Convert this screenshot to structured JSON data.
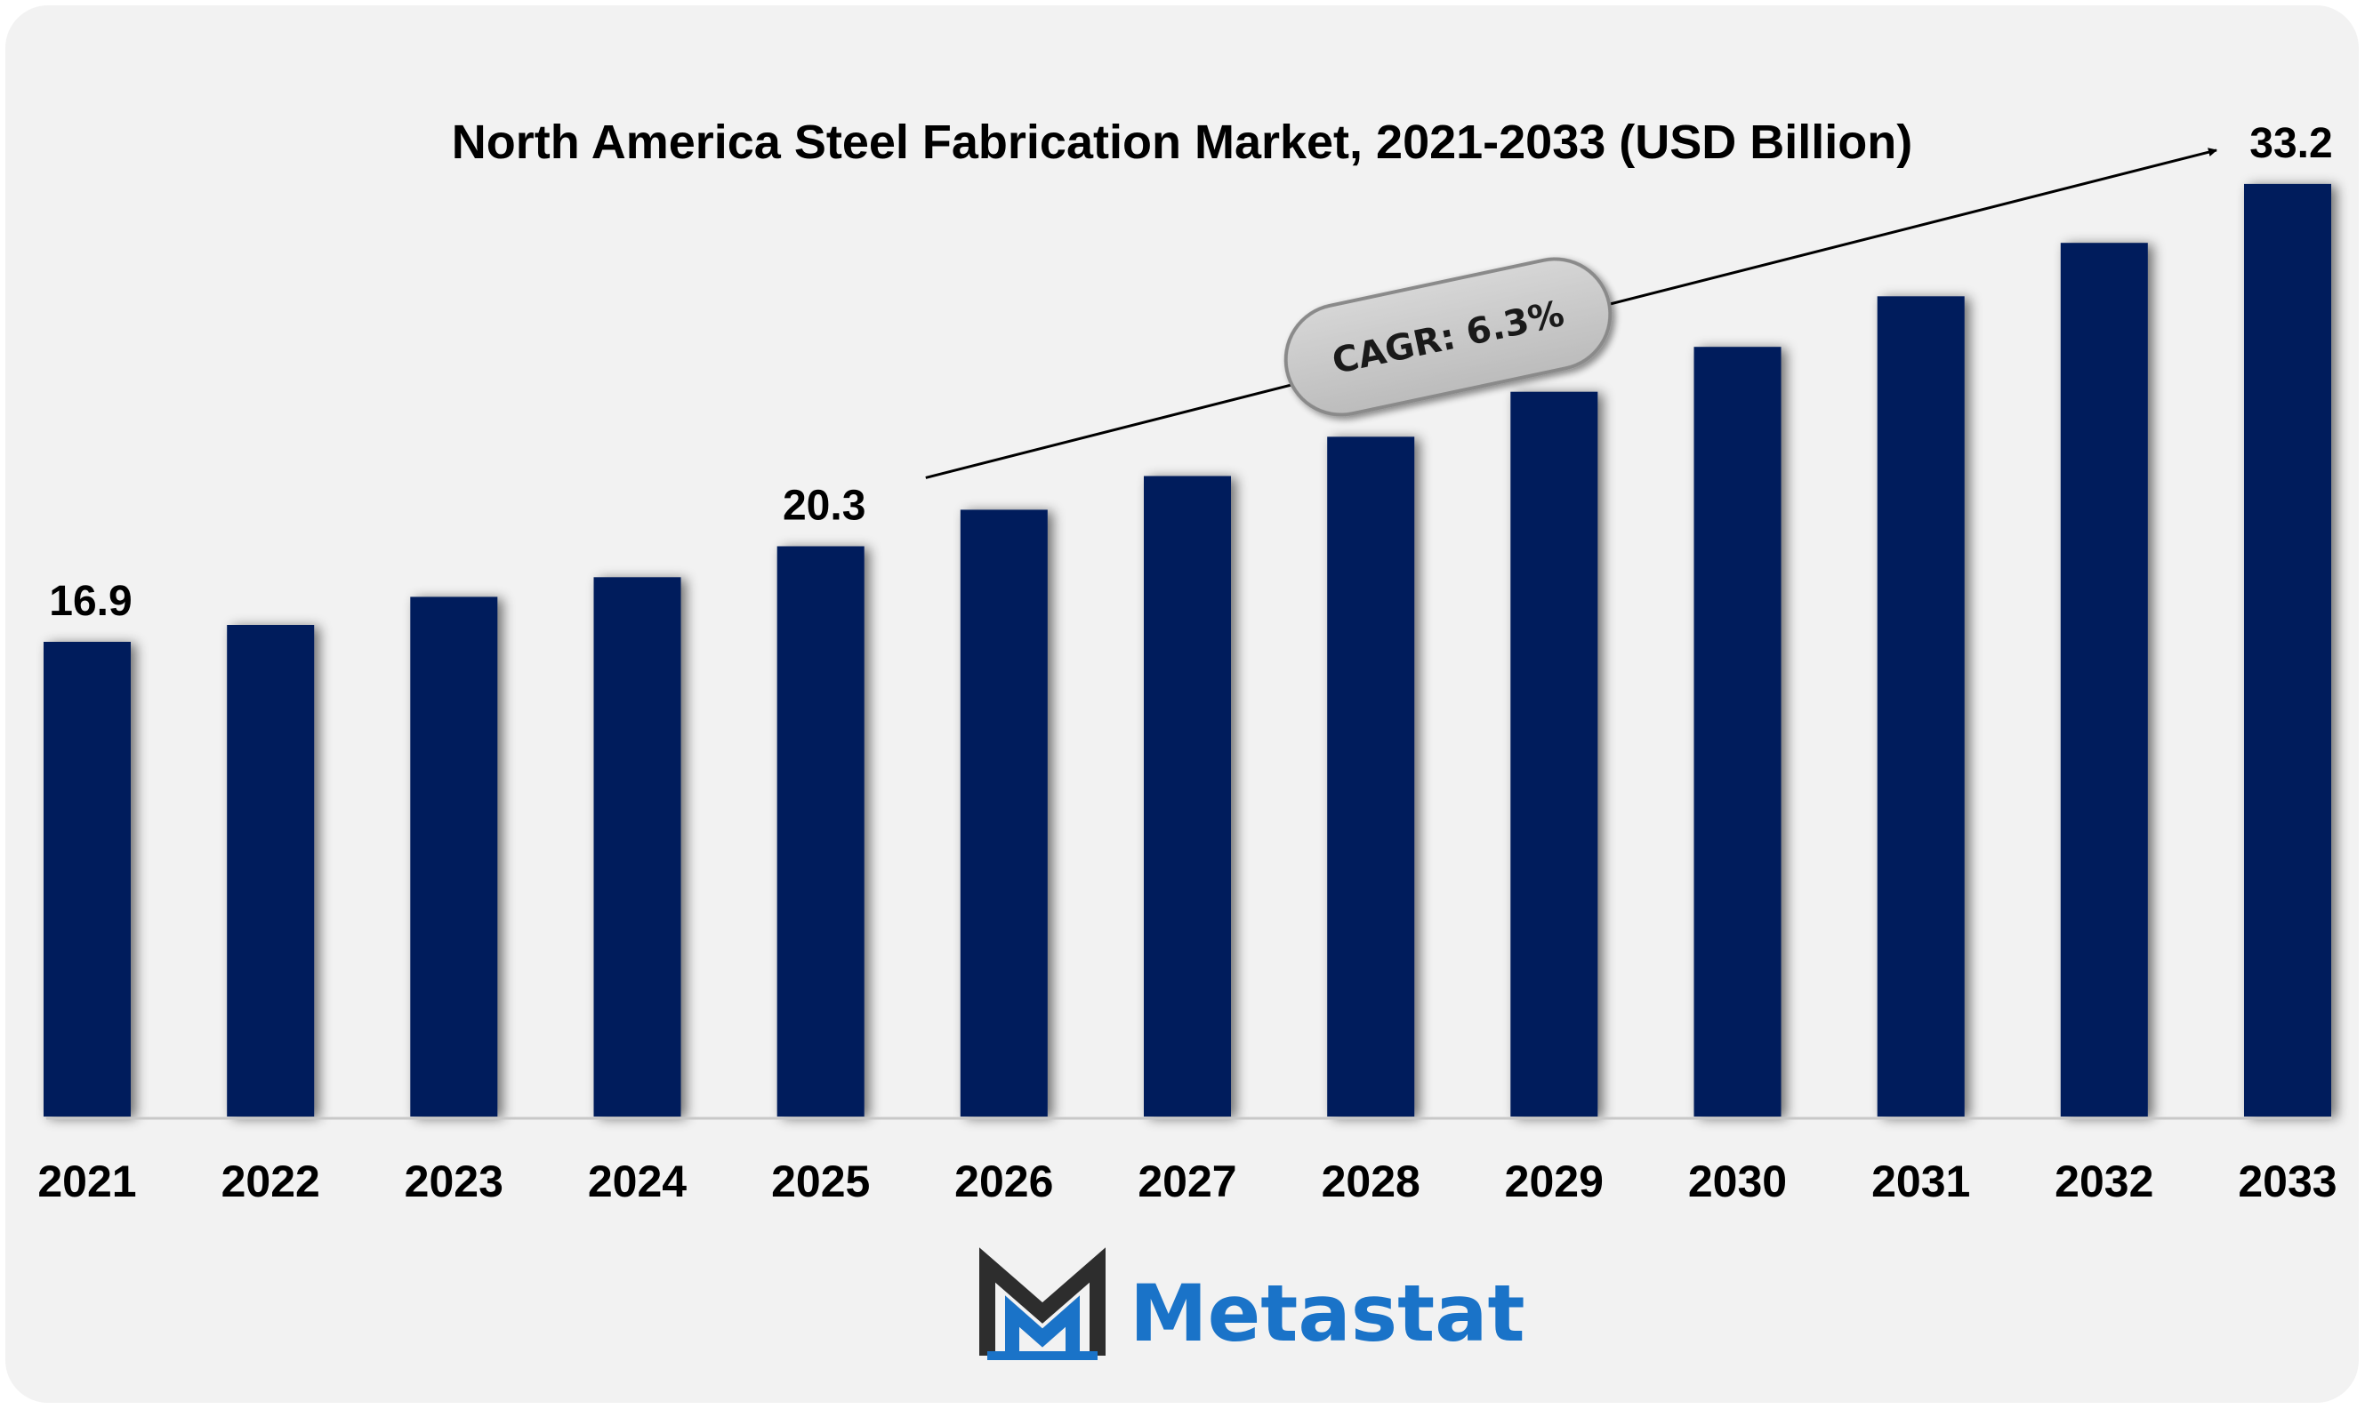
{
  "chart_data": {
    "type": "bar",
    "title": "North America Steel Fabrication Market, 2021-2033 (USD Billion)",
    "xlabel": "",
    "ylabel": "",
    "categories": [
      "2021",
      "2022",
      "2023",
      "2024",
      "2025",
      "2026",
      "2027",
      "2028",
      "2029",
      "2030",
      "2031",
      "2032",
      "2033"
    ],
    "values": [
      16.9,
      17.5,
      18.5,
      19.2,
      20.3,
      21.6,
      22.8,
      24.2,
      25.8,
      27.4,
      29.2,
      31.1,
      33.2
    ],
    "ylim": [
      0,
      35
    ],
    "grid": false,
    "data_labels": [
      {
        "index": 0,
        "text": "16.9"
      },
      {
        "index": 4,
        "text": "20.3"
      },
      {
        "index": 12,
        "text": "33.2"
      }
    ],
    "annotation": {
      "text": "CAGR: 6.3%",
      "from_index": 5,
      "to_index": 12
    }
  },
  "colors": {
    "bar": "#041e5c",
    "background": "#f2f2f2",
    "brand_dark": "#2d2d2d",
    "brand_blue": "#1a73c8"
  },
  "brand": {
    "name": "Metastat",
    "logo_icon": "metastat-m-logo"
  }
}
